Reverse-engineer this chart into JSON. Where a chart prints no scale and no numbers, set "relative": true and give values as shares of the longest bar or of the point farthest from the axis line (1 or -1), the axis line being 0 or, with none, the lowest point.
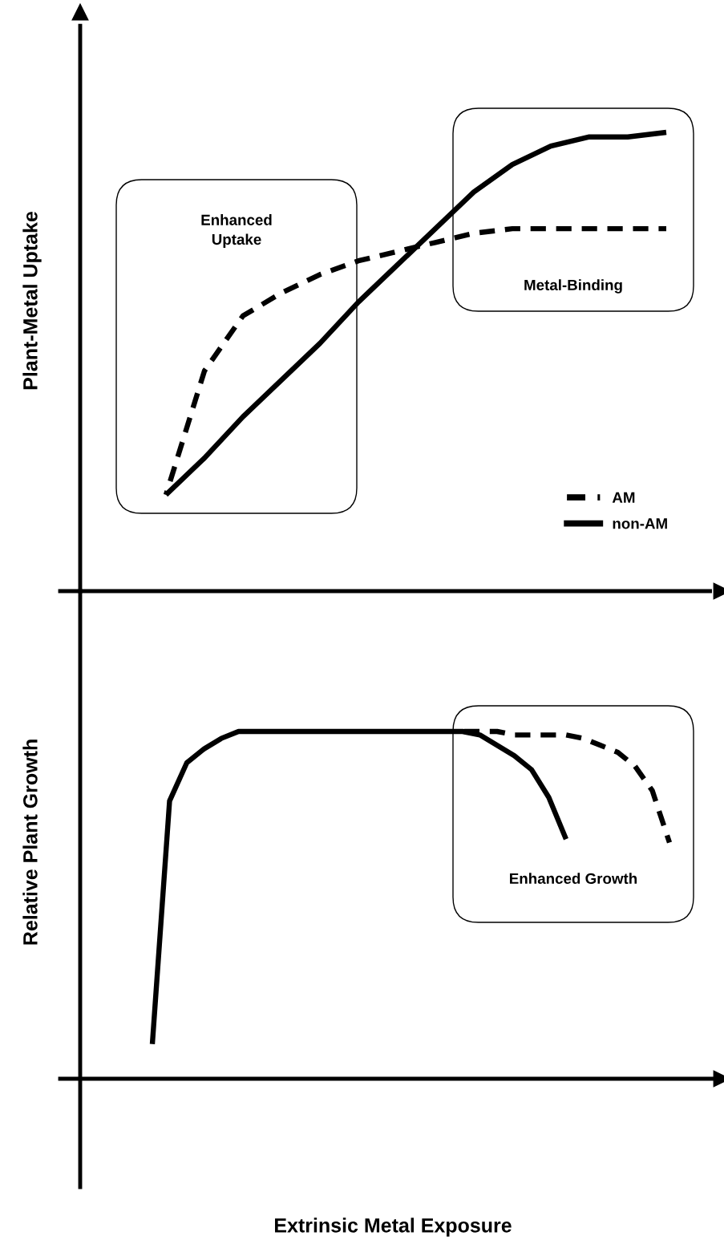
{
  "chart_data": [
    {
      "type": "line",
      "relative": true,
      "ylabel": "Plant-Metal Uptake",
      "legend": "lower right",
      "categories": [
        null,
        null,
        null,
        null,
        null,
        null,
        null,
        null,
        null,
        null,
        null,
        null,
        null,
        null
      ],
      "series": [
        {
          "name": "AM",
          "color": "#000000",
          "line_style": "dashed",
          "values": [
            0.21,
            0.48,
            0.6,
            0.65,
            0.69,
            0.72,
            0.74,
            0.76,
            0.78,
            0.79,
            0.79,
            0.79,
            0.79,
            0.79
          ]
        },
        {
          "name": "non-AM",
          "color": "#000000",
          "line_style": "solid",
          "values": [
            0.21,
            0.29,
            0.38,
            0.46,
            0.54,
            0.63,
            0.71,
            0.79,
            0.87,
            0.93,
            0.97,
            0.99,
            0.99,
            1.0
          ]
        }
      ],
      "annotations": [
        "Enhanced\nUptake",
        "Metal-Binding"
      ]
    },
    {
      "type": "line",
      "relative": true,
      "ylabel": "Relative Plant Growth",
      "xlabel": "Extrinsic Metal Exposure",
      "categories": [
        null,
        null,
        null,
        null,
        null,
        null,
        null,
        null,
        null,
        null,
        null,
        null,
        null,
        null,
        null,
        null,
        null,
        null,
        null,
        null,
        null,
        null,
        null,
        null,
        null,
        null,
        null,
        null,
        null,
        null,
        null
      ],
      "series": [
        {
          "color": "#000000",
          "line_style": "dashed",
          "values": [
            null,
            null,
            null,
            null,
            null,
            null,
            null,
            null,
            null,
            null,
            null,
            null,
            null,
            null,
            null,
            null,
            null,
            null,
            1.0,
            1.0,
            1.0,
            0.99,
            0.99,
            0.99,
            0.99,
            0.98,
            0.96,
            0.94,
            0.9,
            0.83,
            0.68
          ]
        },
        {
          "color": "#000000",
          "line_style": "solid",
          "values": [
            0.1,
            0.8,
            0.91,
            0.95,
            0.98,
            1.0,
            1.0,
            1.0,
            1.0,
            1.0,
            1.0,
            1.0,
            1.0,
            1.0,
            1.0,
            1.0,
            1.0,
            1.0,
            1.0,
            0.99,
            0.96,
            0.93,
            0.89,
            0.81,
            0.69,
            null,
            null,
            null,
            null,
            null,
            null
          ]
        }
      ],
      "annotations": [
        "Enhanced Growth"
      ]
    }
  ]
}
